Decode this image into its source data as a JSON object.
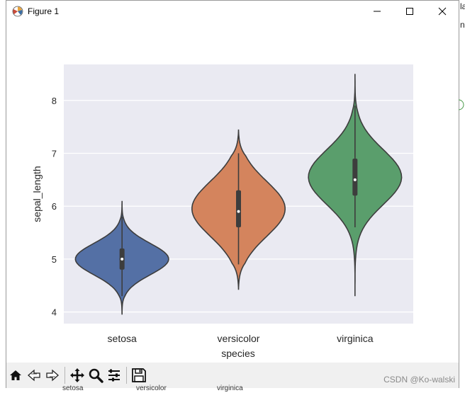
{
  "window": {
    "title": "Figure 1"
  },
  "chart_data": {
    "type": "violin",
    "xlabel": "species",
    "ylabel": "sepal_length",
    "categories": [
      "setosa",
      "versicolor",
      "virginica"
    ],
    "colors": [
      "#5470a5",
      "#d4845d",
      "#5a9e6c"
    ],
    "ylim": [
      3.78,
      8.68
    ],
    "yticks": [
      4,
      5,
      6,
      7,
      8
    ],
    "grid": true,
    "stats": [
      {
        "min": 4.3,
        "q1": 4.8,
        "median": 5.0,
        "q3": 5.2,
        "max": 5.8,
        "kde_min": 3.95,
        "kde_max": 6.1
      },
      {
        "min": 4.9,
        "q1": 5.6,
        "median": 5.9,
        "q3": 6.3,
        "max": 7.0,
        "kde_min": 4.42,
        "kde_max": 7.45
      },
      {
        "min": 5.6,
        "q1": 6.2,
        "median": 6.5,
        "q3": 6.9,
        "max": 7.9,
        "kde_min": 4.3,
        "kde_max": 8.5
      }
    ]
  },
  "toolbar": {
    "buttons": [
      "home-icon",
      "back-icon",
      "forward-icon",
      "pan-icon",
      "zoom-icon",
      "configure-icon",
      "save-icon"
    ]
  },
  "watermark": "CSDN @Ko-walski",
  "background_labels": [
    "setosa",
    "versicolor",
    "virginica"
  ],
  "edge_fragments": [
    "la",
    "ne"
  ]
}
